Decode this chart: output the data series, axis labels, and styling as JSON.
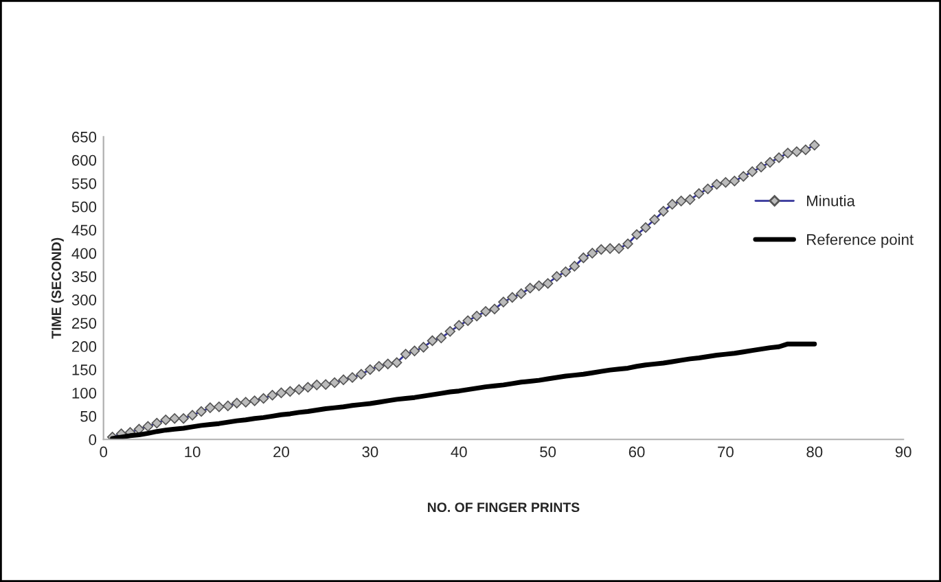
{
  "chart_data": {
    "type": "line",
    "xlabel": "NO. OF FINGER PRINTS",
    "ylabel": "TIME (SECOND)",
    "x": [
      1,
      2,
      3,
      4,
      5,
      6,
      7,
      8,
      9,
      10,
      11,
      12,
      13,
      14,
      15,
      16,
      17,
      18,
      19,
      20,
      21,
      22,
      23,
      24,
      25,
      26,
      27,
      28,
      29,
      30,
      31,
      32,
      33,
      34,
      35,
      36,
      37,
      38,
      39,
      40,
      41,
      42,
      43,
      44,
      45,
      46,
      47,
      48,
      49,
      50,
      51,
      52,
      53,
      54,
      55,
      56,
      57,
      58,
      59,
      60,
      61,
      62,
      63,
      64,
      65,
      66,
      67,
      68,
      69,
      70,
      71,
      72,
      73,
      74,
      75,
      76,
      77,
      78,
      79,
      80
    ],
    "series": [
      {
        "name": "Minutia",
        "color": "#333399",
        "marker": "diamond",
        "values": [
          5,
          12,
          15,
          22,
          28,
          35,
          42,
          45,
          45,
          52,
          60,
          68,
          70,
          72,
          78,
          80,
          83,
          88,
          95,
          100,
          103,
          107,
          112,
          117,
          118,
          122,
          128,
          133,
          140,
          150,
          157,
          162,
          165,
          183,
          190,
          198,
          212,
          218,
          232,
          245,
          255,
          265,
          275,
          280,
          295,
          305,
          313,
          325,
          330,
          335,
          350,
          360,
          372,
          390,
          400,
          408,
          410,
          410,
          420,
          440,
          455,
          472,
          490,
          505,
          512,
          515,
          528,
          538,
          548,
          552,
          555,
          565,
          575,
          585,
          595,
          605,
          615,
          618,
          622,
          632
        ]
      },
      {
        "name": "Reference point",
        "color": "#000000",
        "marker": "none",
        "values": [
          2,
          5,
          8,
          10,
          13,
          17,
          20,
          22,
          24,
          27,
          30,
          32,
          34,
          37,
          40,
          42,
          45,
          47,
          50,
          53,
          55,
          58,
          60,
          63,
          66,
          68,
          70,
          73,
          75,
          77,
          80,
          83,
          86,
          88,
          90,
          93,
          96,
          99,
          102,
          104,
          107,
          110,
          113,
          115,
          117,
          120,
          123,
          125,
          127,
          130,
          133,
          136,
          138,
          140,
          143,
          146,
          149,
          151,
          153,
          157,
          160,
          162,
          164,
          167,
          170,
          173,
          175,
          178,
          181,
          183,
          185,
          188,
          191,
          194,
          197,
          199,
          205,
          205,
          205,
          205
        ]
      }
    ],
    "xlim": [
      0,
      90
    ],
    "xticks": [
      0,
      10,
      20,
      30,
      40,
      50,
      60,
      70,
      80,
      90
    ],
    "ylim": [
      0,
      650
    ],
    "yticks": [
      0,
      50,
      100,
      150,
      200,
      250,
      300,
      350,
      400,
      450,
      500,
      550,
      600,
      650
    ],
    "grid": false,
    "legend": "right"
  }
}
